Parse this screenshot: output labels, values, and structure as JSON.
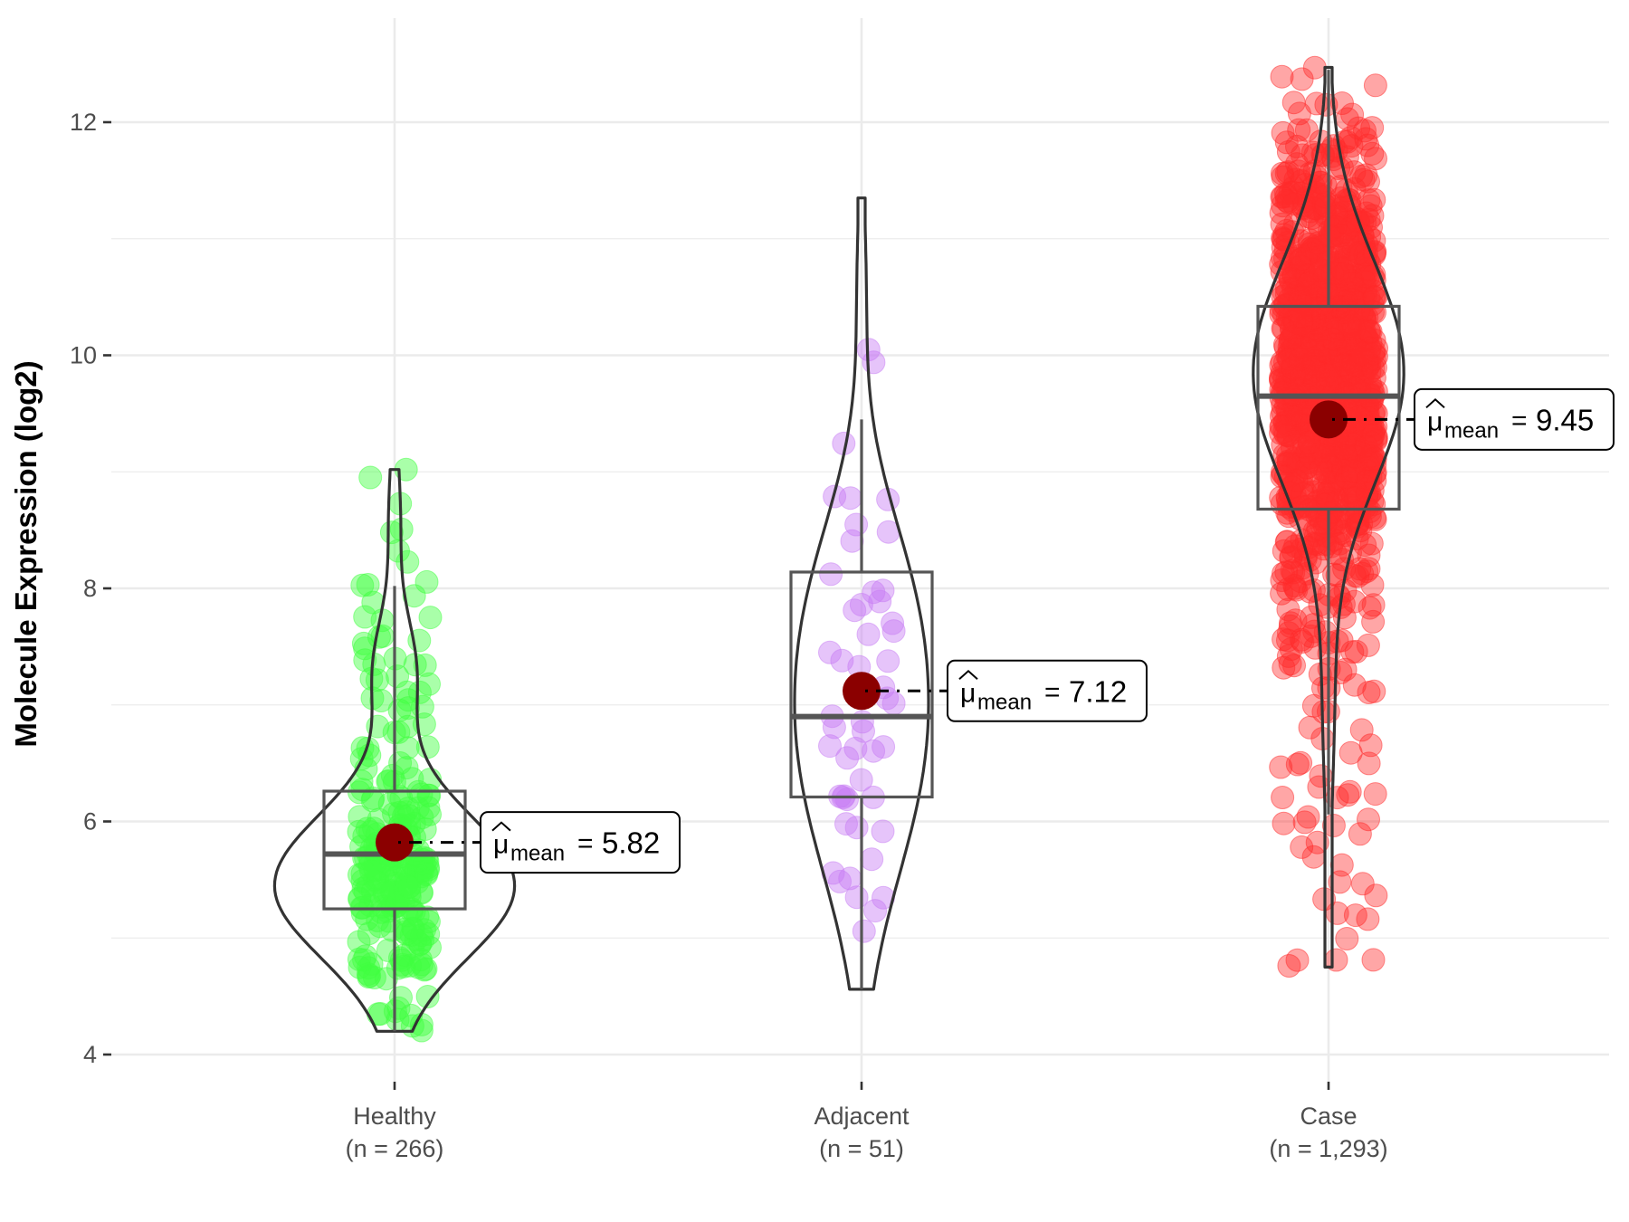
{
  "chart_data": {
    "type": "violin",
    "title": "",
    "xlabel": "",
    "ylabel": "Molecule Expression (log2)",
    "ylim": [
      3.77,
      12.9
    ],
    "yticks": [
      4,
      6,
      8,
      10,
      12
    ],
    "grid": true,
    "legend": "none",
    "categories": [
      "Healthy",
      "Adjacent",
      "Case"
    ],
    "category_labels": [
      {
        "name": "Healthy",
        "n_label": "(n = 266)"
      },
      {
        "name": "Adjacent",
        "n_label": "(n = 51)"
      },
      {
        "name": "Case",
        "n_label": "(n = 1,293)"
      }
    ],
    "series": [
      {
        "name": "Healthy",
        "n": 266,
        "color": "#33FF33",
        "point_color": "#40FF40",
        "min": 4.2,
        "max": 9.02,
        "q1": 5.25,
        "median": 5.72,
        "q3": 6.26,
        "whisker_low": 4.2,
        "whisker_high": 8.02,
        "mean": 5.82,
        "mean_label": {
          "symbol": "μ",
          "subscript": "mean",
          "equals": "=",
          "value": "5.82"
        }
      },
      {
        "name": "Adjacent",
        "n": 51,
        "color": "#BF5FFF",
        "point_color": "#C77DF3",
        "min": 4.56,
        "max": 11.35,
        "q1": 6.21,
        "median": 6.9,
        "q3": 8.14,
        "whisker_low": 4.56,
        "whisker_high": 9.45,
        "mean": 7.12,
        "mean_label": {
          "symbol": "μ",
          "subscript": "mean",
          "equals": "=",
          "value": "7.12"
        }
      },
      {
        "name": "Case",
        "n": 1293,
        "color": "#FF2020",
        "point_color": "#FF2A2A",
        "min": 4.75,
        "max": 12.47,
        "q1": 8.68,
        "median": 9.65,
        "q3": 10.42,
        "whisker_low": 6.06,
        "whisker_high": 12.45,
        "mean": 9.45,
        "mean_label": {
          "symbol": "μ",
          "subscript": "mean",
          "equals": "=",
          "value": "9.45"
        }
      }
    ],
    "mean_point_color": "#8B0000"
  }
}
